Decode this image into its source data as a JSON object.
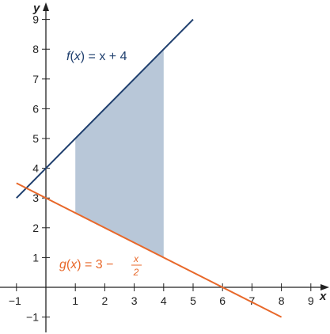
{
  "chart_data": {
    "type": "line",
    "title": "",
    "xlabel": "x",
    "ylabel": "y",
    "xlim": [
      -1,
      9
    ],
    "ylim": [
      -1,
      9
    ],
    "x_ticks": [
      "−1",
      "1",
      "2",
      "3",
      "4",
      "5",
      "6",
      "7",
      "8",
      "9"
    ],
    "y_ticks": [
      "−1",
      "1",
      "2",
      "3",
      "4",
      "5",
      "6",
      "7",
      "8",
      "9"
    ],
    "grid": false,
    "series": [
      {
        "name": "f(x) = x + 4",
        "label_parts": {
          "fn": "f",
          "var": "x",
          "rhs": " = x + 4"
        },
        "color": "#1f3f6e",
        "points": [
          [
            -1,
            3
          ],
          [
            5,
            9
          ]
        ]
      },
      {
        "name": "g(x) = 3 − x/2",
        "label_parts": {
          "fn": "g",
          "var": "x",
          "rhs": " = 3 − ",
          "num": "x",
          "den": "2"
        },
        "color": "#e8682a",
        "points": [
          [
            -1,
            3.5
          ],
          [
            8,
            -1
          ]
        ]
      }
    ],
    "shaded_region": {
      "between": [
        "f",
        "g"
      ],
      "x_range": [
        1,
        4
      ],
      "color": "#b8c7d8"
    }
  }
}
